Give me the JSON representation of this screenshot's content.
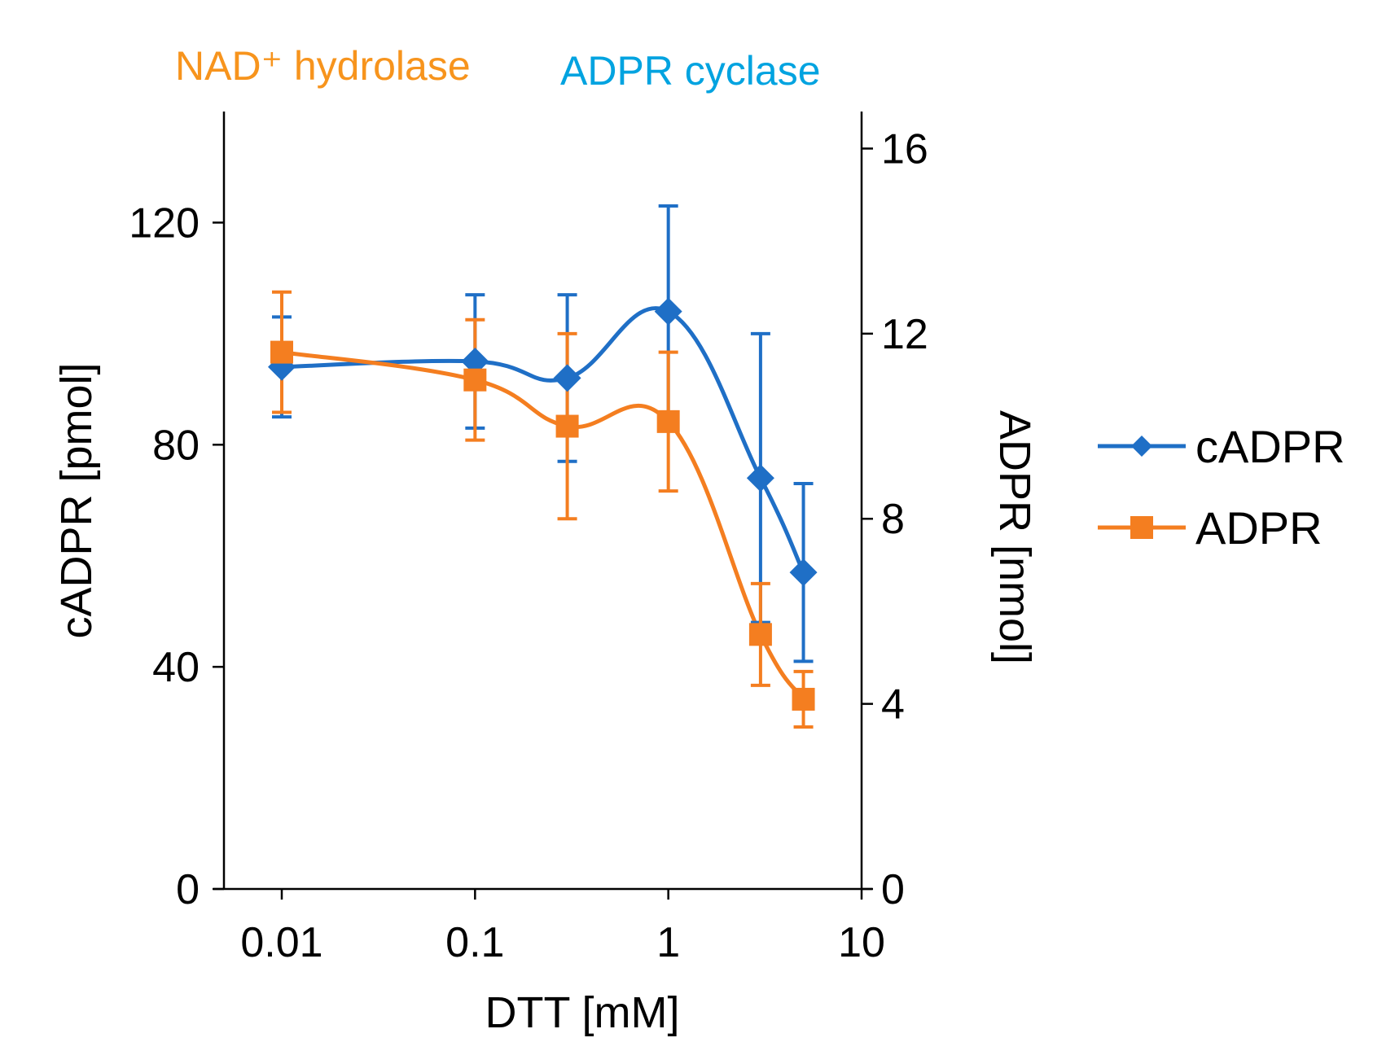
{
  "chart_data": {
    "type": "line",
    "header_labels": {
      "left": "NAD⁺ hydrolase",
      "right": "ADPR cyclase"
    },
    "header_colors": {
      "left": "#f7941d",
      "right": "#00a3e0"
    },
    "x_axis": {
      "label": "DTT [mM]",
      "scale": "log",
      "range": [
        0.005,
        10
      ],
      "ticks": [
        0.01,
        0.1,
        1,
        10
      ],
      "tick_labels": [
        "0.01",
        "0.1",
        "1",
        "10"
      ]
    },
    "y_axis_left": {
      "label": "cADPR [pmol]",
      "range": [
        0,
        140
      ],
      "ticks": [
        0,
        40,
        80,
        120
      ],
      "tick_labels": [
        "0",
        "40",
        "80",
        "120"
      ]
    },
    "y_axis_right": {
      "label": "ADPR [nmol]",
      "range": [
        0,
        16.8
      ],
      "ticks": [
        0,
        4,
        8,
        12,
        16
      ],
      "tick_labels": [
        "0",
        "4",
        "8",
        "12",
        "16"
      ]
    },
    "x": [
      0.01,
      0.1,
      0.3,
      1,
      3,
      5
    ],
    "series": [
      {
        "name": "cADPR",
        "axis": "left",
        "color": "#1f6fc6",
        "marker": "diamond",
        "values": [
          94,
          95,
          92,
          104,
          74,
          57
        ],
        "error": [
          9,
          12,
          15,
          19,
          26,
          16
        ]
      },
      {
        "name": "ADPR",
        "axis": "right",
        "color": "#f47e20",
        "marker": "square",
        "values": [
          11.6,
          11.0,
          10.0,
          10.1,
          5.5,
          4.1
        ],
        "error": [
          1.3,
          1.3,
          2.0,
          1.5,
          1.1,
          0.6
        ]
      }
    ],
    "legend": {
      "position": "right",
      "items": [
        "cADPR",
        "ADPR"
      ]
    },
    "grid": false
  }
}
